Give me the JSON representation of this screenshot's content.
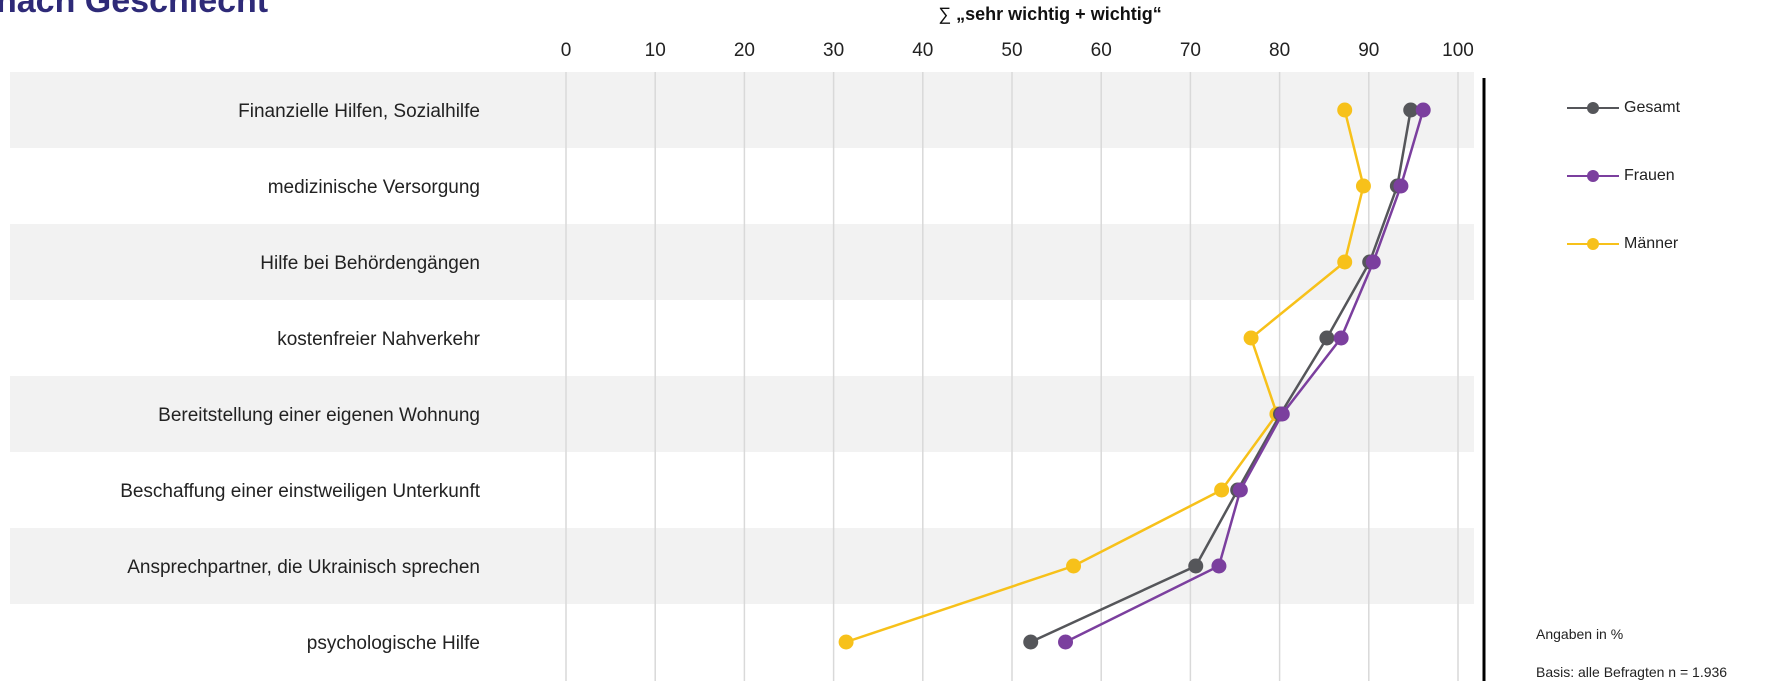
{
  "title": "nach Geschlecht",
  "notes": {
    "unit": "Angaben in %",
    "basis": "Basis: alle Befragten n = 1.936"
  },
  "chart_data": {
    "type": "line",
    "orientation": "horizontal",
    "title": "",
    "xlabel_sum": "∑",
    "xlabel": "„sehr wichtig + wichtig“",
    "xlim": [
      0,
      100
    ],
    "xticks": [
      "0",
      "10",
      "20",
      "30",
      "40",
      "50",
      "60",
      "70",
      "80",
      "90",
      "100"
    ],
    "grid": true,
    "legend_position": "right",
    "categories": [
      "Finanzielle Hilfen, Sozialhilfe",
      "medizinische Versorgung",
      "Hilfe bei Behördengängen",
      "kostenfreier Nahverkehr",
      "Bereitstellung einer eigenen Wohnung",
      "Beschaffung einer einstweiligen Unterkunft",
      "Ansprechpartner, die Ukrainisch sprechen",
      "psychologische Hilfe"
    ],
    "series": [
      {
        "name": "Gesamt",
        "color": "#55565a",
        "values": [
          94.7,
          93.2,
          90.1,
          85.3,
          80.1,
          75.3,
          70.6,
          52.1
        ]
      },
      {
        "name": "Frauen",
        "color": "#7b3f9e",
        "values": [
          96.1,
          93.6,
          90.5,
          86.9,
          80.3,
          75.6,
          73.2,
          56.0
        ]
      },
      {
        "name": "Männer",
        "color": "#f7c11a",
        "values": [
          87.3,
          89.4,
          87.3,
          76.8,
          79.7,
          73.5,
          56.9,
          31.4
        ]
      }
    ]
  },
  "colors": {
    "band": "#f2f2f2",
    "grid": "#d9d9d9",
    "axis_line": "#000000",
    "title": "#2e2a78"
  }
}
